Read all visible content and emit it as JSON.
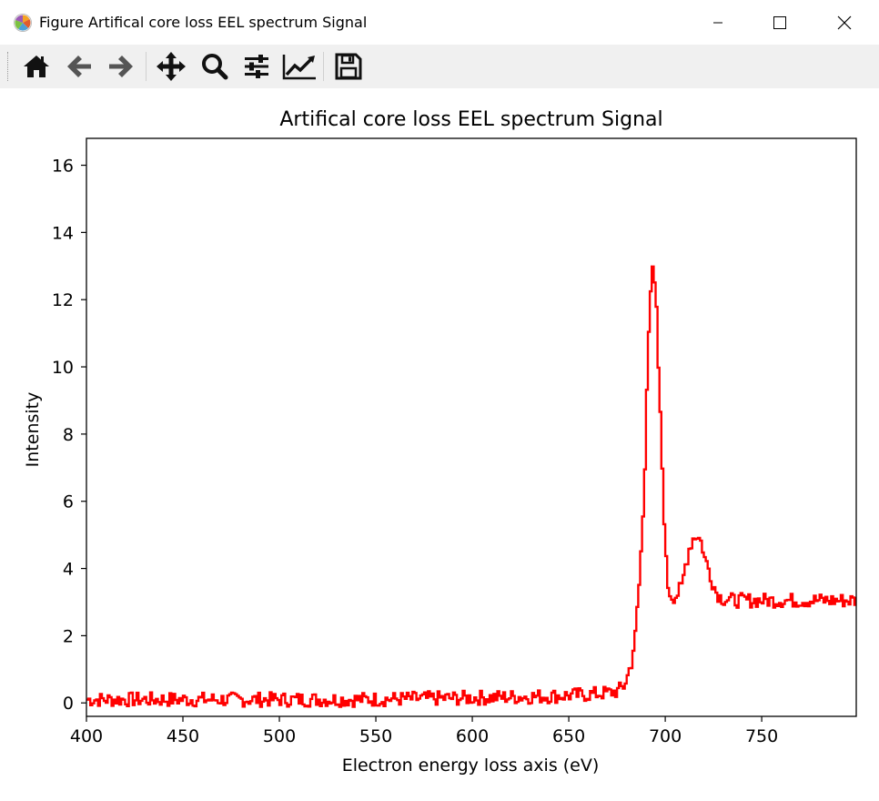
{
  "window": {
    "title": "Figure Artifical core loss EEL spectrum Signal",
    "controls": [
      "minimize",
      "maximize",
      "close"
    ]
  },
  "toolbar": {
    "tools": [
      {
        "name": "home-icon",
        "tooltip": "Home"
      },
      {
        "name": "back-arrow-icon",
        "tooltip": "Back"
      },
      {
        "name": "forward-arrow-icon",
        "tooltip": "Forward"
      },
      {
        "name": "pan-icon",
        "tooltip": "Pan"
      },
      {
        "name": "zoom-icon",
        "tooltip": "Zoom"
      },
      {
        "name": "configure-subplots-icon",
        "tooltip": "Subplots"
      },
      {
        "name": "edit-curve-icon",
        "tooltip": "Customize"
      },
      {
        "name": "save-icon",
        "tooltip": "Save"
      }
    ]
  },
  "chart_data": {
    "type": "line",
    "title": "Artifical core loss EEL spectrum Signal",
    "xlabel": "Electron energy loss axis (eV)",
    "ylabel": "Intensity",
    "xlim": [
      400,
      799
    ],
    "ylim": [
      -0.4,
      16.8
    ],
    "xticks": [
      400,
      450,
      500,
      550,
      600,
      650,
      700,
      750
    ],
    "yticks": [
      0,
      2,
      4,
      6,
      8,
      10,
      12,
      14,
      16
    ],
    "grid": false,
    "line_color": "#ff0000",
    "drawstyle": "steps",
    "series": [
      {
        "x": [
          400,
          460,
          540,
          600,
          640,
          660,
          670,
          675,
          678,
          680,
          682,
          684,
          686,
          688,
          689,
          690,
          691,
          692,
          693,
          694,
          695,
          696,
          697,
          698,
          699,
          700,
          701,
          702,
          703,
          705,
          708,
          710,
          712,
          714,
          716,
          718,
          719,
          720,
          722,
          724,
          726,
          728,
          730,
          735,
          740,
          750,
          760,
          770,
          780,
          790,
          799
        ],
        "values": [
          0.1,
          0.1,
          0.1,
          0.15,
          0.2,
          0.25,
          0.3,
          0.35,
          0.5,
          0.8,
          1.2,
          2.0,
          3.5,
          5.5,
          7.0,
          9.5,
          11.2,
          12.3,
          12.8,
          12.4,
          11.6,
          10.0,
          8.5,
          7.0,
          5.5,
          4.2,
          3.5,
          3.3,
          3.2,
          3.2,
          3.4,
          4.1,
          4.6,
          4.9,
          5.0,
          4.8,
          4.6,
          4.3,
          4.0,
          3.6,
          3.3,
          3.15,
          3.1,
          3.05,
          3.05,
          3.05,
          3.05,
          3.05,
          3.05,
          3.05,
          3.05
        ]
      }
    ]
  }
}
